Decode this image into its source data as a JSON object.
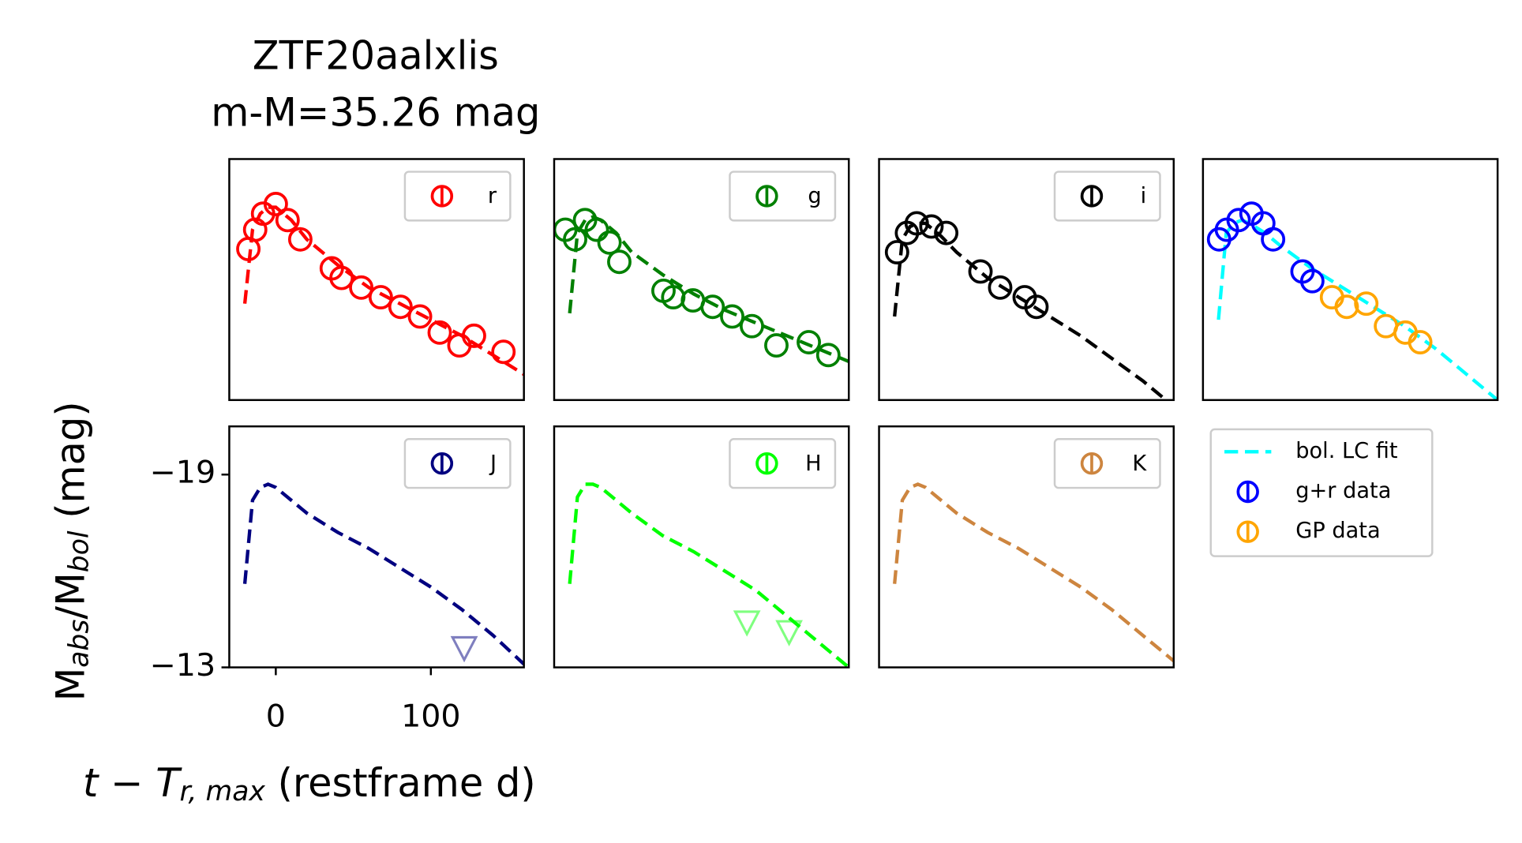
{
  "title": [
    "ZTF20aalxlis",
    "m-M=35.26 mag"
  ],
  "xlabel": {
    "main": "t − T",
    "sub": "r, max",
    "rest": " (restframe d)"
  },
  "ylabel": [
    {
      "text": "M"
    },
    {
      "text": "abs",
      "sub": true
    },
    {
      "text": "/M"
    },
    {
      "text": "bol",
      "sub": true
    },
    {
      "text": " (mag)"
    }
  ],
  "chart_data": [
    {
      "type": "line",
      "xlim": [
        -30,
        160
      ],
      "ylim": [
        -13,
        -20.5
      ],
      "legend": "upper right",
      "series": [
        {
          "name": "r",
          "color": "red",
          "marker": "circle",
          "x": [
            -17.7,
            -13.3,
            -8.2,
            0,
            7.6,
            15.8,
            36.1,
            42.4,
            55.1,
            67.7,
            80.4,
            93.0,
            105.7,
            118.4,
            127.8,
            146.8
          ],
          "values": [
            -17.7,
            -18.3,
            -18.8,
            -19.1,
            -18.6,
            -18.0,
            -17.1,
            -16.8,
            -16.5,
            -16.2,
            -15.9,
            -15.6,
            -15.1,
            -14.7,
            -15.0,
            -14.5
          ]
        },
        {
          "color": "red",
          "style": "dashed",
          "x": [
            -20,
            -15,
            -10,
            -5,
            0,
            10,
            20,
            40,
            60,
            80,
            100,
            120,
            140,
            160
          ],
          "values": [
            -16.0,
            -18.3,
            -18.8,
            -19.0,
            -19.0,
            -18.6,
            -18.0,
            -17.2,
            -16.5,
            -16.0,
            -15.5,
            -15.0,
            -14.4,
            -13.8
          ]
        }
      ]
    },
    {
      "type": "line",
      "xlim": [
        -30,
        160
      ],
      "ylim": [
        -13,
        -20.5
      ],
      "legend": "upper right",
      "series": [
        {
          "name": "g",
          "color": "green",
          "marker": "circle",
          "x": [
            -22.8,
            -16.5,
            -10.1,
            -2.5,
            5.7,
            12.0,
            40.5,
            46.8,
            59.5,
            72.2,
            84.8,
            97.5,
            113.3,
            134.2,
            146.8
          ],
          "values": [
            -18.3,
            -18.0,
            -18.6,
            -18.3,
            -17.9,
            -17.3,
            -16.4,
            -16.2,
            -16.1,
            -15.9,
            -15.6,
            -15.3,
            -14.7,
            -14.8,
            -14.4
          ]
        },
        {
          "color": "green",
          "style": "dashed",
          "x": [
            -20,
            -15,
            -10,
            -5,
            0,
            10,
            20,
            40,
            60,
            80,
            100,
            120,
            140,
            160
          ],
          "values": [
            -15.7,
            -18.2,
            -18.6,
            -18.7,
            -18.6,
            -18.2,
            -17.6,
            -16.9,
            -16.3,
            -15.8,
            -15.4,
            -15.0,
            -14.6,
            -14.2
          ]
        }
      ]
    },
    {
      "type": "line",
      "xlim": [
        -30,
        160
      ],
      "ylim": [
        -13,
        -20.5
      ],
      "legend": "upper right",
      "series": [
        {
          "name": "i",
          "color": "black",
          "marker": "circle",
          "x": [
            -18.4,
            -12.0,
            -5.7,
            3.8,
            13.3,
            35.4,
            48.1,
            63.9,
            71.5
          ],
          "values": [
            -17.6,
            -18.2,
            -18.5,
            -18.4,
            -18.2,
            -17.0,
            -16.5,
            -16.2,
            -15.9
          ]
        },
        {
          "color": "black",
          "style": "dashed",
          "x": [
            -20,
            -15,
            -10,
            -5,
            0,
            10,
            20,
            40,
            60,
            80,
            100,
            120,
            140,
            160
          ],
          "values": [
            -15.6,
            -18.0,
            -18.4,
            -18.5,
            -18.5,
            -18.1,
            -17.6,
            -16.8,
            -16.2,
            -15.6,
            -15.0,
            -14.3,
            -13.6,
            -12.8
          ]
        }
      ]
    },
    {
      "type": "line",
      "xlim": [
        -30,
        160
      ],
      "ylim": [
        -13,
        -20.5
      ],
      "legend": "outside",
      "series": [
        {
          "name": "bol. LC fit",
          "color": "cyan",
          "style": "dashed",
          "x": [
            -20,
            -15,
            -10,
            -5,
            0,
            10,
            20,
            40,
            60,
            80,
            100,
            120,
            140,
            160
          ],
          "values": [
            -15.5,
            -18.2,
            -18.5,
            -18.6,
            -18.5,
            -18.2,
            -17.8,
            -17.1,
            -16.5,
            -15.9,
            -15.3,
            -14.6,
            -13.8,
            -13.0
          ]
        },
        {
          "name": "g+r data",
          "color": "blue",
          "marker": "circle",
          "x": [
            -19.6,
            -14.6,
            -7.0,
            1.3,
            8.9,
            15.2,
            34.2,
            40.5
          ],
          "values": [
            -18.0,
            -18.3,
            -18.6,
            -18.8,
            -18.5,
            -18.0,
            -17.0,
            -16.7
          ]
        },
        {
          "name": "GP data",
          "color": "orange",
          "marker": "circle",
          "x": [
            53.2,
            62.7,
            75.3,
            88.0,
            100.6,
            110.1
          ],
          "values": [
            -16.2,
            -15.9,
            -16.0,
            -15.3,
            -15.1,
            -14.8
          ]
        }
      ]
    },
    {
      "type": "line",
      "xlim": [
        -30,
        160
      ],
      "ylim": [
        -13,
        -20.5
      ],
      "legend": "upper right",
      "yticks": [
        {
          "value": -19,
          "label": "−19"
        },
        {
          "value": -13,
          "label": "−13"
        }
      ],
      "xticks": [
        0,
        100
      ],
      "series": [
        {
          "name": "J",
          "color": "navy",
          "marker": "triangle",
          "x": [
            121.5
          ],
          "values": [
            -13.6
          ]
        },
        {
          "color": "navy",
          "style": "dashed",
          "x": [
            -20,
            -15,
            -10,
            -5,
            0,
            10,
            20,
            40,
            60,
            80,
            100,
            120,
            140,
            160
          ],
          "values": [
            -15.6,
            -18.2,
            -18.6,
            -18.7,
            -18.6,
            -18.2,
            -17.8,
            -17.2,
            -16.7,
            -16.1,
            -15.5,
            -14.8,
            -14.0,
            -13.1
          ]
        }
      ]
    },
    {
      "type": "line",
      "xlim": [
        -30,
        160
      ],
      "ylim": [
        -13,
        -20.5
      ],
      "legend": "upper right",
      "series": [
        {
          "name": "H",
          "color": "lime",
          "marker": "triangle",
          "x": [
            94.3,
            121.5
          ],
          "values": [
            -14.4,
            -14.1
          ]
        },
        {
          "color": "lime",
          "style": "dashed",
          "x": [
            -20,
            -15,
            -10,
            -5,
            0,
            10,
            20,
            40,
            60,
            80,
            100,
            120,
            140,
            160
          ],
          "values": [
            -15.6,
            -18.3,
            -18.7,
            -18.7,
            -18.6,
            -18.2,
            -17.8,
            -17.1,
            -16.6,
            -16.0,
            -15.4,
            -14.6,
            -13.8,
            -13.0
          ]
        }
      ]
    },
    {
      "type": "line",
      "xlim": [
        -30,
        160
      ],
      "ylim": [
        -13,
        -20.5
      ],
      "legend": "upper right",
      "series": [
        {
          "name": "K",
          "color": "peru",
          "marker": "none",
          "x": [],
          "values": []
        },
        {
          "color": "peru",
          "style": "dashed",
          "x": [
            -20,
            -15,
            -10,
            -5,
            0,
            10,
            20,
            40,
            60,
            80,
            100,
            120,
            140,
            160
          ],
          "values": [
            -15.6,
            -18.2,
            -18.6,
            -18.7,
            -18.6,
            -18.2,
            -17.8,
            -17.2,
            -16.7,
            -16.1,
            -15.5,
            -14.8,
            -14.0,
            -13.2
          ]
        }
      ]
    }
  ]
}
